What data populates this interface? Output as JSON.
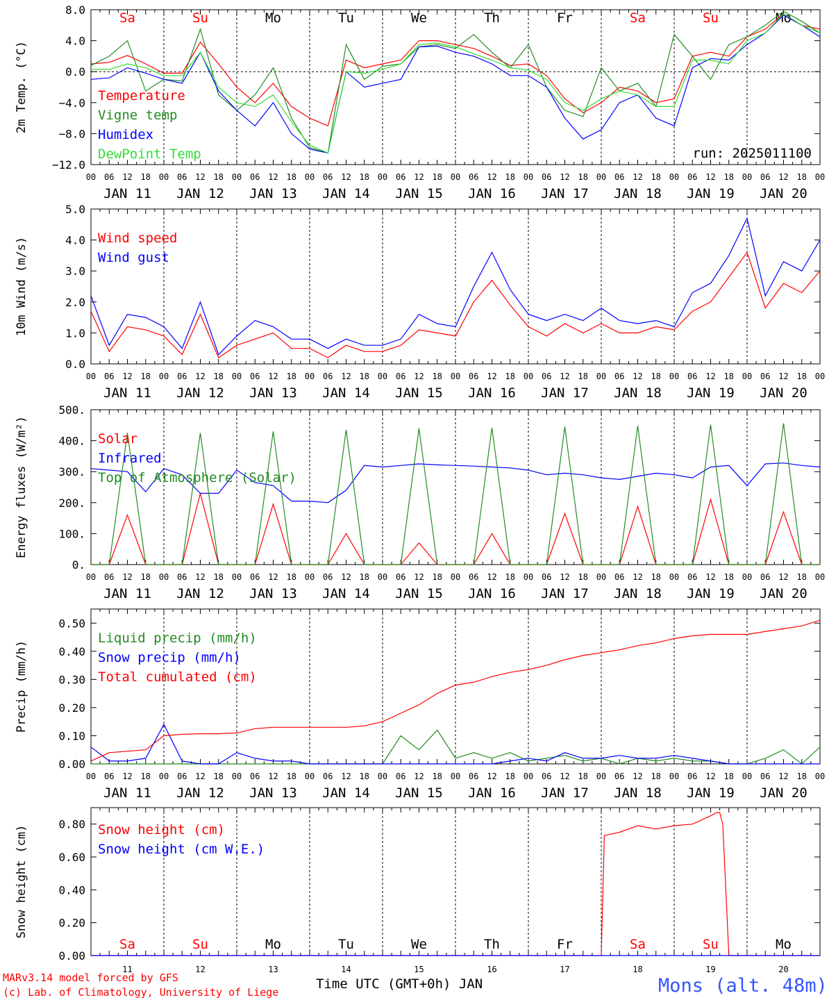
{
  "run": "run: 2025011100",
  "hour_labels": [
    "00",
    "06",
    "12",
    "18"
  ],
  "days": [
    {
      "dow": "Sa",
      "date": "JAN 11",
      "num": "11",
      "weekend": true
    },
    {
      "dow": "Su",
      "date": "JAN 12",
      "num": "12",
      "weekend": true
    },
    {
      "dow": "Mo",
      "date": "JAN 13",
      "num": "13",
      "weekend": false
    },
    {
      "dow": "Tu",
      "date": "JAN 14",
      "num": "14",
      "weekend": false
    },
    {
      "dow": "We",
      "date": "JAN 15",
      "num": "15",
      "weekend": false
    },
    {
      "dow": "Th",
      "date": "JAN 16",
      "num": "16",
      "weekend": false
    },
    {
      "dow": "Fr",
      "date": "JAN 17",
      "num": "17",
      "weekend": false
    },
    {
      "dow": "Sa",
      "date": "JAN 18",
      "num": "18",
      "weekend": true
    },
    {
      "dow": "Su",
      "date": "JAN 19",
      "num": "19",
      "weekend": true
    },
    {
      "dow": "Mo",
      "date": "JAN 20",
      "num": "20",
      "weekend": false
    }
  ],
  "colors": {
    "red": "#ff0000",
    "green": "#228b22",
    "blue": "#0000ff",
    "lightgreen": "#33dd33",
    "weekend": "#ff0000",
    "station": "#3355ff",
    "footer": "#ff0000"
  },
  "footer": {
    "model": "MARv3.14 model forced by GFS",
    "lab": "(c) Lab. of Climatology, University of Liege",
    "xlabel": "Time UTC (GMT+0h) JAN",
    "station": "Mons (alt. 48m)"
  },
  "chart_data": [
    {
      "type": "line",
      "ylabel": "2m Temp. (°C)",
      "ylim": [
        -12,
        8
      ],
      "yticks": [
        "8.0",
        "4.0",
        "0.0",
        "−4.0",
        "−8.0",
        "−12.0"
      ],
      "x_hours": [
        0,
        6,
        12,
        18,
        24,
        30,
        36,
        42,
        48,
        54,
        60,
        66,
        72,
        78,
        84,
        90,
        96,
        102,
        108,
        114,
        120,
        126,
        132,
        138,
        144,
        150,
        156,
        162,
        168,
        174,
        180,
        186,
        192,
        198,
        204,
        210,
        216,
        222,
        228,
        234,
        240
      ],
      "series": [
        {
          "name": "Temperature",
          "color": "red",
          "values": [
            1.0,
            1.2,
            2.1,
            1.0,
            -0.2,
            -0.2,
            3.8,
            1.0,
            -2.0,
            -4.0,
            -1.5,
            -4.5,
            -6.0,
            -7.0,
            1.5,
            0.5,
            1.0,
            1.5,
            4.0,
            4.0,
            3.5,
            3.0,
            2.0,
            0.8,
            1.0,
            -0.5,
            -3.5,
            -5.3,
            -4.0,
            -2.0,
            -2.5,
            -4.0,
            -3.5,
            2.0,
            2.5,
            2.0,
            4.5,
            5.5,
            7.5,
            6.0,
            5.5
          ]
        },
        {
          "name": "Vigne temp",
          "color": "green",
          "values": [
            0.8,
            2.0,
            4.0,
            -2.5,
            -1.0,
            -1.2,
            5.5,
            -3.0,
            -5.0,
            -3.0,
            0.5,
            -6.0,
            -9.8,
            -10.5,
            3.5,
            -1.0,
            0.7,
            1.0,
            3.2,
            3.5,
            3.0,
            4.8,
            2.5,
            0.5,
            3.5,
            -2.0,
            -5.0,
            -5.8,
            0.5,
            -2.5,
            -1.5,
            -4.5,
            4.8,
            2.0,
            -1.0,
            3.5,
            4.5,
            6.0,
            7.8,
            6.5,
            5.0
          ]
        },
        {
          "name": "Humidex",
          "color": "blue",
          "values": [
            -1.0,
            -0.8,
            0.5,
            -0.2,
            -1.0,
            -1.5,
            2.5,
            -2.5,
            -5.0,
            -7.0,
            -4.0,
            -8.0,
            -10.0,
            -10.5,
            0.0,
            -2.0,
            -1.5,
            -1.0,
            3.2,
            3.3,
            2.5,
            2.0,
            1.0,
            -0.5,
            -0.5,
            -2.0,
            -6.0,
            -8.7,
            -7.5,
            -4.0,
            -3.0,
            -6.0,
            -7.0,
            0.5,
            1.7,
            1.5,
            3.5,
            5.0,
            7.3,
            6.0,
            4.5
          ]
        },
        {
          "name": "DewPoint Temp",
          "color": "lightgreen",
          "values": [
            0.3,
            0.3,
            1.0,
            0.5,
            -0.5,
            -0.5,
            2.5,
            -2.0,
            -4.0,
            -4.5,
            -3.0,
            -6.5,
            -9.5,
            -10.5,
            0.0,
            -0.2,
            0.3,
            1.0,
            3.5,
            3.7,
            3.2,
            2.3,
            1.5,
            0.5,
            0.2,
            -1.0,
            -4.0,
            -5.0,
            -3.5,
            -2.5,
            -3.0,
            -4.5,
            -4.5,
            1.5,
            1.5,
            1.0,
            4.0,
            5.0,
            7.5,
            6.0,
            5.0
          ]
        }
      ]
    },
    {
      "type": "line",
      "ylabel": "10m Wind (m/s)",
      "ylim": [
        0,
        5
      ],
      "yticks": [
        "5.0",
        "4.0",
        "3.0",
        "2.0",
        "1.0",
        "0.0"
      ],
      "x_hours": [
        0,
        6,
        12,
        18,
        24,
        30,
        36,
        42,
        48,
        54,
        60,
        66,
        72,
        78,
        84,
        90,
        96,
        102,
        108,
        114,
        120,
        126,
        132,
        138,
        144,
        150,
        156,
        162,
        168,
        174,
        180,
        186,
        192,
        198,
        204,
        210,
        216,
        222,
        228,
        234,
        240
      ],
      "series": [
        {
          "name": "Wind speed",
          "color": "red",
          "values": [
            1.7,
            0.4,
            1.2,
            1.1,
            0.9,
            0.3,
            1.6,
            0.2,
            0.6,
            0.8,
            1.0,
            0.5,
            0.5,
            0.2,
            0.6,
            0.4,
            0.4,
            0.6,
            1.1,
            1.0,
            0.9,
            2.0,
            2.7,
            1.9,
            1.2,
            0.9,
            1.3,
            1.0,
            1.3,
            1.0,
            1.0,
            1.2,
            1.1,
            1.7,
            2.0,
            2.8,
            3.6,
            1.8,
            2.6,
            2.3,
            3.0
          ]
        },
        {
          "name": "Wind gust",
          "color": "blue",
          "values": [
            2.2,
            0.6,
            1.6,
            1.5,
            1.2,
            0.5,
            2.0,
            0.3,
            0.9,
            1.4,
            1.2,
            0.8,
            0.8,
            0.5,
            0.8,
            0.6,
            0.6,
            0.8,
            1.6,
            1.3,
            1.2,
            2.5,
            3.6,
            2.4,
            1.6,
            1.4,
            1.6,
            1.4,
            1.8,
            1.4,
            1.3,
            1.4,
            1.2,
            2.3,
            2.6,
            3.5,
            4.7,
            2.2,
            3.3,
            3.0,
            4.0
          ]
        }
      ]
    },
    {
      "type": "line",
      "ylabel": "Energy fluxes (W/m²)",
      "ylim": [
        0,
        500
      ],
      "yticks": [
        "500.",
        "400.",
        "300.",
        "200.",
        "100.",
        "0."
      ],
      "x_hours": [
        0,
        6,
        12,
        18,
        24,
        30,
        36,
        42,
        48,
        54,
        60,
        66,
        72,
        78,
        84,
        90,
        96,
        102,
        108,
        114,
        120,
        126,
        132,
        138,
        144,
        150,
        156,
        162,
        168,
        174,
        180,
        186,
        192,
        198,
        204,
        210,
        216,
        222,
        228,
        234,
        240
      ],
      "series": [
        {
          "name": "Solar",
          "color": "red",
          "values": [
            0,
            0,
            160,
            0,
            0,
            0,
            230,
            0,
            0,
            0,
            195,
            0,
            0,
            0,
            100,
            0,
            0,
            0,
            70,
            0,
            0,
            0,
            100,
            0,
            0,
            0,
            165,
            0,
            0,
            0,
            188,
            0,
            0,
            0,
            210,
            0,
            0,
            0,
            170,
            0,
            0
          ]
        },
        {
          "name": "Infrared",
          "color": "blue",
          "values": [
            310,
            305,
            300,
            235,
            310,
            290,
            230,
            230,
            305,
            265,
            255,
            205,
            205,
            200,
            240,
            320,
            315,
            320,
            325,
            322,
            320,
            318,
            315,
            312,
            305,
            290,
            295,
            290,
            280,
            275,
            285,
            295,
            290,
            280,
            315,
            320,
            255,
            325,
            328,
            320,
            315
          ]
        },
        {
          "name": "Top of Atmosphere (Solar)",
          "color": "green",
          "values": [
            0,
            0,
            425,
            0,
            0,
            0,
            425,
            0,
            0,
            0,
            430,
            0,
            0,
            0,
            435,
            0,
            0,
            0,
            440,
            0,
            0,
            0,
            442,
            0,
            0,
            0,
            445,
            0,
            0,
            0,
            448,
            0,
            0,
            0,
            452,
            0,
            0,
            0,
            456,
            0,
            0
          ]
        }
      ]
    },
    {
      "type": "line",
      "ylabel": "Precip (mm/h)",
      "ylim": [
        0,
        0.55
      ],
      "yticks": [
        "0.50",
        "0.40",
        "0.30",
        "0.20",
        "0.10",
        "0.00"
      ],
      "x_hours": [
        0,
        6,
        12,
        18,
        24,
        30,
        36,
        42,
        48,
        54,
        60,
        66,
        72,
        78,
        84,
        90,
        96,
        102,
        108,
        114,
        120,
        126,
        132,
        138,
        144,
        150,
        156,
        162,
        168,
        174,
        180,
        186,
        192,
        198,
        204,
        210,
        216,
        222,
        228,
        234,
        240
      ],
      "series": [
        {
          "name": "Liquid precip (mm/h)",
          "color": "green",
          "values": [
            0,
            0,
            0,
            0,
            0,
            0,
            0,
            0,
            0,
            0,
            0,
            0,
            0,
            0,
            0,
            0,
            0,
            0.1,
            0.05,
            0.12,
            0.02,
            0.04,
            0.02,
            0.04,
            0.01,
            0.02,
            0.03,
            0.01,
            0.02,
            0,
            0.02,
            0.01,
            0.02,
            0.01,
            0.01,
            0,
            0,
            0.02,
            0.05,
            0,
            0.06
          ]
        },
        {
          "name": "Snow precip (mm/h)",
          "color": "blue",
          "values": [
            0.06,
            0.01,
            0.01,
            0.02,
            0.14,
            0.01,
            0,
            0,
            0.04,
            0.02,
            0.01,
            0.01,
            0,
            0,
            0,
            0,
            0,
            0,
            0,
            0,
            0,
            0,
            0,
            0.01,
            0.02,
            0.01,
            0.04,
            0.02,
            0.02,
            0.03,
            0.02,
            0.02,
            0.03,
            0.02,
            0.01,
            0,
            0,
            0,
            0,
            0,
            0
          ]
        },
        {
          "name": "Total cumulated (cm)",
          "color": "red",
          "values": [
            0.01,
            0.04,
            0.045,
            0.05,
            0.1,
            0.105,
            0.107,
            0.107,
            0.11,
            0.125,
            0.13,
            0.13,
            0.13,
            0.13,
            0.13,
            0.135,
            0.15,
            0.18,
            0.21,
            0.25,
            0.28,
            0.29,
            0.31,
            0.325,
            0.335,
            0.35,
            0.37,
            0.385,
            0.395,
            0.405,
            0.42,
            0.43,
            0.445,
            0.455,
            0.46,
            0.46,
            0.46,
            0.47,
            0.48,
            0.49,
            0.51
          ]
        }
      ]
    },
    {
      "type": "line",
      "ylabel": "Snow height (cm)",
      "ylim": [
        0,
        0.9
      ],
      "yticks": [
        "0.80",
        "0.60",
        "0.40",
        "0.20",
        "0.00"
      ],
      "x_hours": [
        0,
        168,
        169,
        174,
        180,
        186,
        192,
        198,
        204,
        206,
        207,
        208,
        210,
        240
      ],
      "series": [
        {
          "name": "Snow height (cm)",
          "color": "red",
          "values": [
            0,
            0,
            0.73,
            0.75,
            0.79,
            0.77,
            0.79,
            0.8,
            0.85,
            0.87,
            0.87,
            0.8,
            0,
            0
          ]
        },
        {
          "name": "Snow height (cm W.E.)",
          "color": "blue",
          "values": [
            0,
            0,
            0,
            0,
            0,
            0,
            0,
            0,
            0,
            0,
            0,
            0,
            0,
            0
          ]
        }
      ]
    }
  ]
}
